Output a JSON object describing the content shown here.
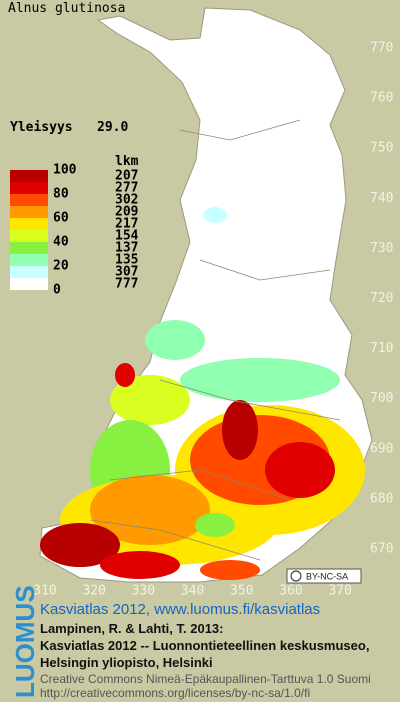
{
  "title": "Alnus glutinosa",
  "frequency": {
    "label": "Yleisyys",
    "value": "29.0"
  },
  "legend": {
    "count_header": "lkm",
    "level_labels": [
      "100",
      "80",
      "60",
      "40",
      "20",
      "0"
    ],
    "colors": [
      "#b80000",
      "#e00000",
      "#ff4a00",
      "#ff9a00",
      "#ffe600",
      "#d8ff20",
      "#88f040",
      "#90ffb0",
      "#c8ffff",
      "#ffffff"
    ],
    "counts": [
      "207",
      "277",
      "302",
      "209",
      "217",
      "154",
      "137",
      "135",
      "307",
      "777"
    ]
  },
  "y_axis_labels": [
    "770",
    "760",
    "750",
    "740",
    "730",
    "720",
    "710",
    "700",
    "690",
    "680",
    "670"
  ],
  "x_axis_labels": [
    "310",
    "320",
    "330",
    "340",
    "350",
    "360",
    "370"
  ],
  "license_badge": "BY-NC-SA",
  "logo": "LUOMUS",
  "credits": {
    "link": "Kasviatlas 2012, www.luomus.fi/kasviatlas",
    "lines": [
      "Lampinen, R. & Lahti, T. 2013:",
      "Kasviatlas 2012 -- Luonnontieteellinen keskusmuseo,",
      "Helsingin yliopisto, Helsinki"
    ],
    "license": [
      "Creative Commons Nimeä-Epäkaupallinen-Tarttuva 1.0 Suomi",
      "http://creativecommons.org/licenses/by-nc-sa/1.0/fi"
    ]
  }
}
